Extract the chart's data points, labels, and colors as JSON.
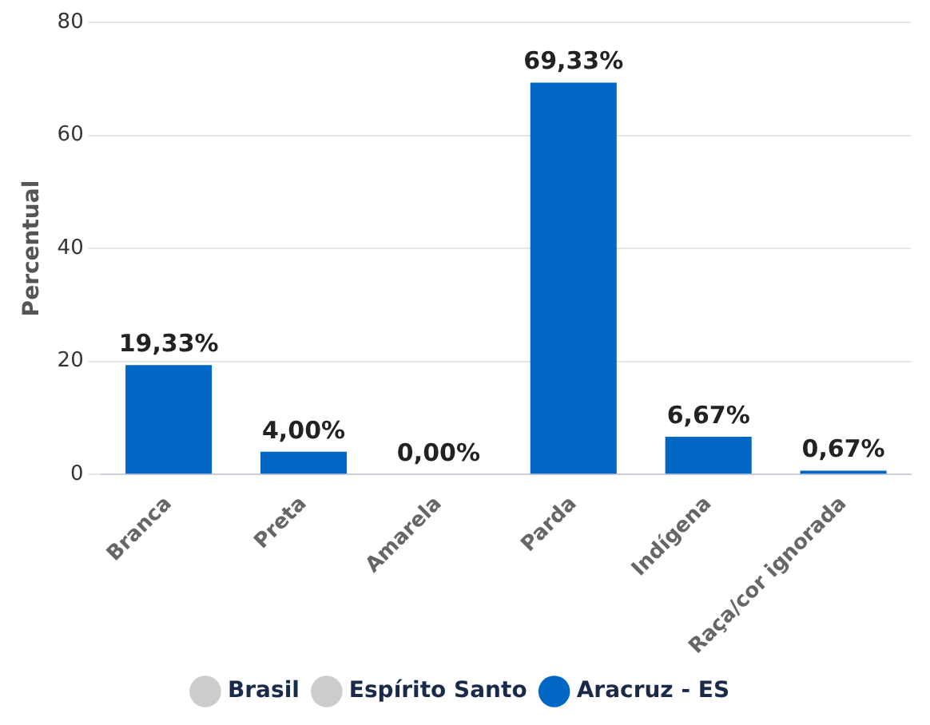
{
  "chart_data": {
    "type": "bar",
    "ylabel": "Percentual",
    "categories": [
      "Branca",
      "Preta",
      "Amarela",
      "Parda",
      "Indígena",
      "Raça/cor ignorada"
    ],
    "series": [
      {
        "name": "Brasil",
        "color": "#cccccc",
        "values": [
          null,
          null,
          null,
          null,
          null,
          null
        ]
      },
      {
        "name": "Espírito Santo",
        "color": "#cccccc",
        "values": [
          null,
          null,
          null,
          null,
          null,
          null
        ]
      },
      {
        "name": "Aracruz - ES",
        "color": "#0068c4",
        "values": [
          19.33,
          4.0,
          0.0,
          69.33,
          6.67,
          0.67
        ],
        "value_labels": [
          "19,33%",
          "4,00%",
          "0,00%",
          "69,33%",
          "6,67%",
          "0,67%"
        ]
      }
    ],
    "ylim": [
      0,
      80
    ],
    "yticks": [
      0,
      20,
      40,
      60,
      80
    ],
    "grid": "y",
    "legend": "bottom"
  }
}
